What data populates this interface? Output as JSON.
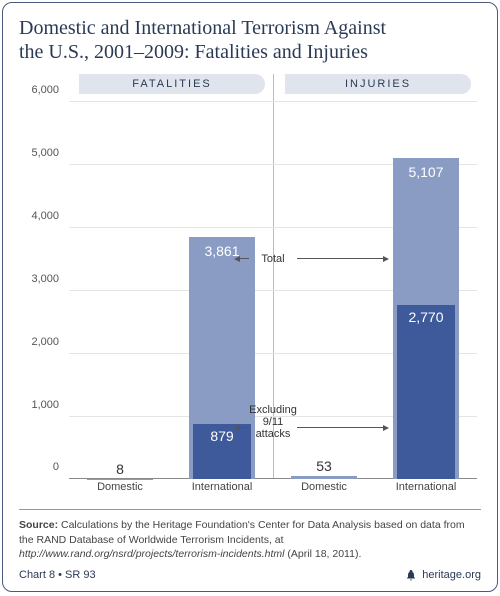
{
  "title_line1": "Domestic and International Terrorism Against",
  "title_line2": "the U.S., 2001–2009: Fatalities and Injuries",
  "panels": {
    "left": "FATALITIES",
    "right": "INJURIES"
  },
  "chart": {
    "type": "bar",
    "ylim": [
      0,
      6000
    ],
    "ytick_step": 1000,
    "yticks": [
      "0",
      "1,000",
      "2,000",
      "3,000",
      "4,000",
      "5,000",
      "6,000"
    ],
    "grid_color": "#e4e4e4",
    "background_color": "#ffffff",
    "divider_color": "#bbbbbb",
    "colors": {
      "total": "#8a9bc4",
      "excl": "#3e5a9a",
      "value_on_total": "#ffffff",
      "value_on_excl": "#ffffff",
      "value_above": "#333333"
    },
    "bar_width_pct": 16,
    "groups": [
      {
        "panel": "left",
        "label": "Domestic",
        "total": 8,
        "excl": 8,
        "total_label": "8",
        "show_excl": false,
        "label_above": true
      },
      {
        "panel": "left",
        "label": "International",
        "total": 3861,
        "excl": 879,
        "total_label": "3,861",
        "excl_label": "879",
        "show_excl": true,
        "label_above": false
      },
      {
        "panel": "right",
        "label": "Domestic",
        "total": 53,
        "excl": 53,
        "total_label": "53",
        "show_excl": false,
        "label_above": true
      },
      {
        "panel": "right",
        "label": "International",
        "total": 5107,
        "excl": 2770,
        "total_label": "5,107",
        "excl_label": "2,770",
        "show_excl": true,
        "label_above": false
      }
    ],
    "annotations": {
      "total": "Total",
      "excl_line1": "Excluding 9/11",
      "excl_line2": "attacks"
    },
    "xlabel_fontsize": 11,
    "ylabel_fontsize": 11,
    "value_fontsize": 14
  },
  "source_prefix": "Source:",
  "source_text": " Calculations by the Heritage Foundation's Center for Data Analysis based on data from the RAND Database of Worldwide Terrorism Incidents, at ",
  "source_url": "http://www.rand.org/nsrd/projects/terrorism-incidents.html",
  "source_date": " (April 18, 2011).",
  "footer_left": "Chart 8 • SR 93",
  "footer_right": "heritage.org"
}
